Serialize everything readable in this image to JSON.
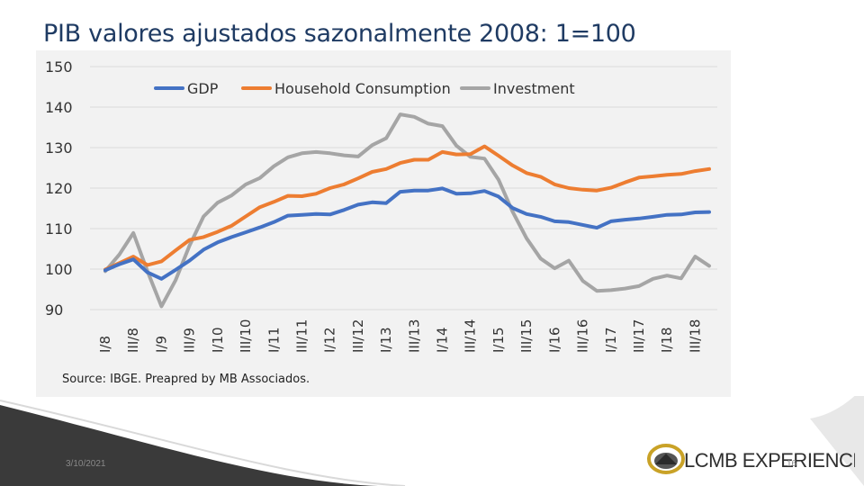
{
  "slide": {
    "title": "PIB valores ajustados sazonalmente 2008: 1=100",
    "date": "3/10/2021",
    "page_number": "16",
    "logo_text": "LCMB EXPERIENCE"
  },
  "chart_data": {
    "type": "line",
    "title": "",
    "xlabel": "",
    "ylabel": "",
    "ylim": [
      90,
      150
    ],
    "yticks": [
      90,
      100,
      110,
      120,
      130,
      140,
      150
    ],
    "grid": "horizontal",
    "legend_position": "top",
    "categories": [
      "I/8",
      "III/8",
      "I/9",
      "III/9",
      "I/10",
      "III/10",
      "I/11",
      "III/11",
      "I/12",
      "III/12",
      "I/13",
      "III/13",
      "I/14",
      "III/14",
      "I/15",
      "III/15",
      "I/16",
      "III/16",
      "I/17",
      "III/17",
      "I/18",
      "III/18"
    ],
    "x": [
      2008.0,
      2008.25,
      2008.5,
      2008.75,
      2009.0,
      2009.25,
      2009.5,
      2009.75,
      2010.0,
      2010.25,
      2010.5,
      2010.75,
      2011.0,
      2011.25,
      2011.5,
      2011.75,
      2012.0,
      2012.25,
      2012.5,
      2012.75,
      2013.0,
      2013.25,
      2013.5,
      2013.75,
      2014.0,
      2014.25,
      2014.5,
      2014.75,
      2015.0,
      2015.25,
      2015.5,
      2015.75,
      2016.0,
      2016.25,
      2016.5,
      2016.75,
      2017.0,
      2017.25,
      2017.5,
      2017.75,
      2018.0,
      2018.25,
      2018.5,
      2018.75
    ],
    "series": [
      {
        "name": "GDP",
        "color": "#4472c4",
        "values": [
          99.7,
          101.2,
          102.4,
          99.2,
          97.6,
          99.8,
          102.1,
          104.8,
          106.6,
          107.9,
          109.1,
          110.3,
          111.6,
          113.2,
          113.4,
          113.6,
          113.5,
          114.6,
          115.9,
          116.5,
          116.3,
          119.1,
          119.4,
          119.4,
          119.9,
          118.6,
          118.7,
          119.3,
          117.9,
          115.1,
          113.6,
          112.9,
          111.8,
          111.6,
          110.9,
          110.2,
          111.8,
          112.2,
          112.5,
          112.9,
          113.4,
          113.5,
          114.0,
          114.1
        ]
      },
      {
        "name": "Household Consumption",
        "color": "#ed7d31",
        "values": [
          99.9,
          101.5,
          103.1,
          101.0,
          101.9,
          104.6,
          107.2,
          107.9,
          109.2,
          110.7,
          113.0,
          115.3,
          116.6,
          118.1,
          118.0,
          118.6,
          120.0,
          120.9,
          122.4,
          124.0,
          124.7,
          126.2,
          127.0,
          127.0,
          128.9,
          128.3,
          128.4,
          130.3,
          128.0,
          125.6,
          123.7,
          122.8,
          120.9,
          120.0,
          119.6,
          119.4,
          120.1,
          121.4,
          122.6,
          122.9,
          123.3,
          123.5,
          124.2,
          124.7
        ]
      },
      {
        "name": "Investment",
        "color": "#a5a5a5",
        "values": [
          99.5,
          103.6,
          108.9,
          99.5,
          90.8,
          97.2,
          105.8,
          113.0,
          116.4,
          118.2,
          120.9,
          122.5,
          125.4,
          127.6,
          128.6,
          128.9,
          128.6,
          128.1,
          127.8,
          130.6,
          132.3,
          138.2,
          137.6,
          135.9,
          135.3,
          130.5,
          127.7,
          127.3,
          122.1,
          114.2,
          107.6,
          102.6,
          100.2,
          102.1,
          97.1,
          94.6,
          94.8,
          95.2,
          95.8,
          97.6,
          98.4,
          97.7,
          103.1,
          100.8
        ]
      }
    ]
  },
  "source_note": "Source: IBGE. Preapred by MB Associados."
}
